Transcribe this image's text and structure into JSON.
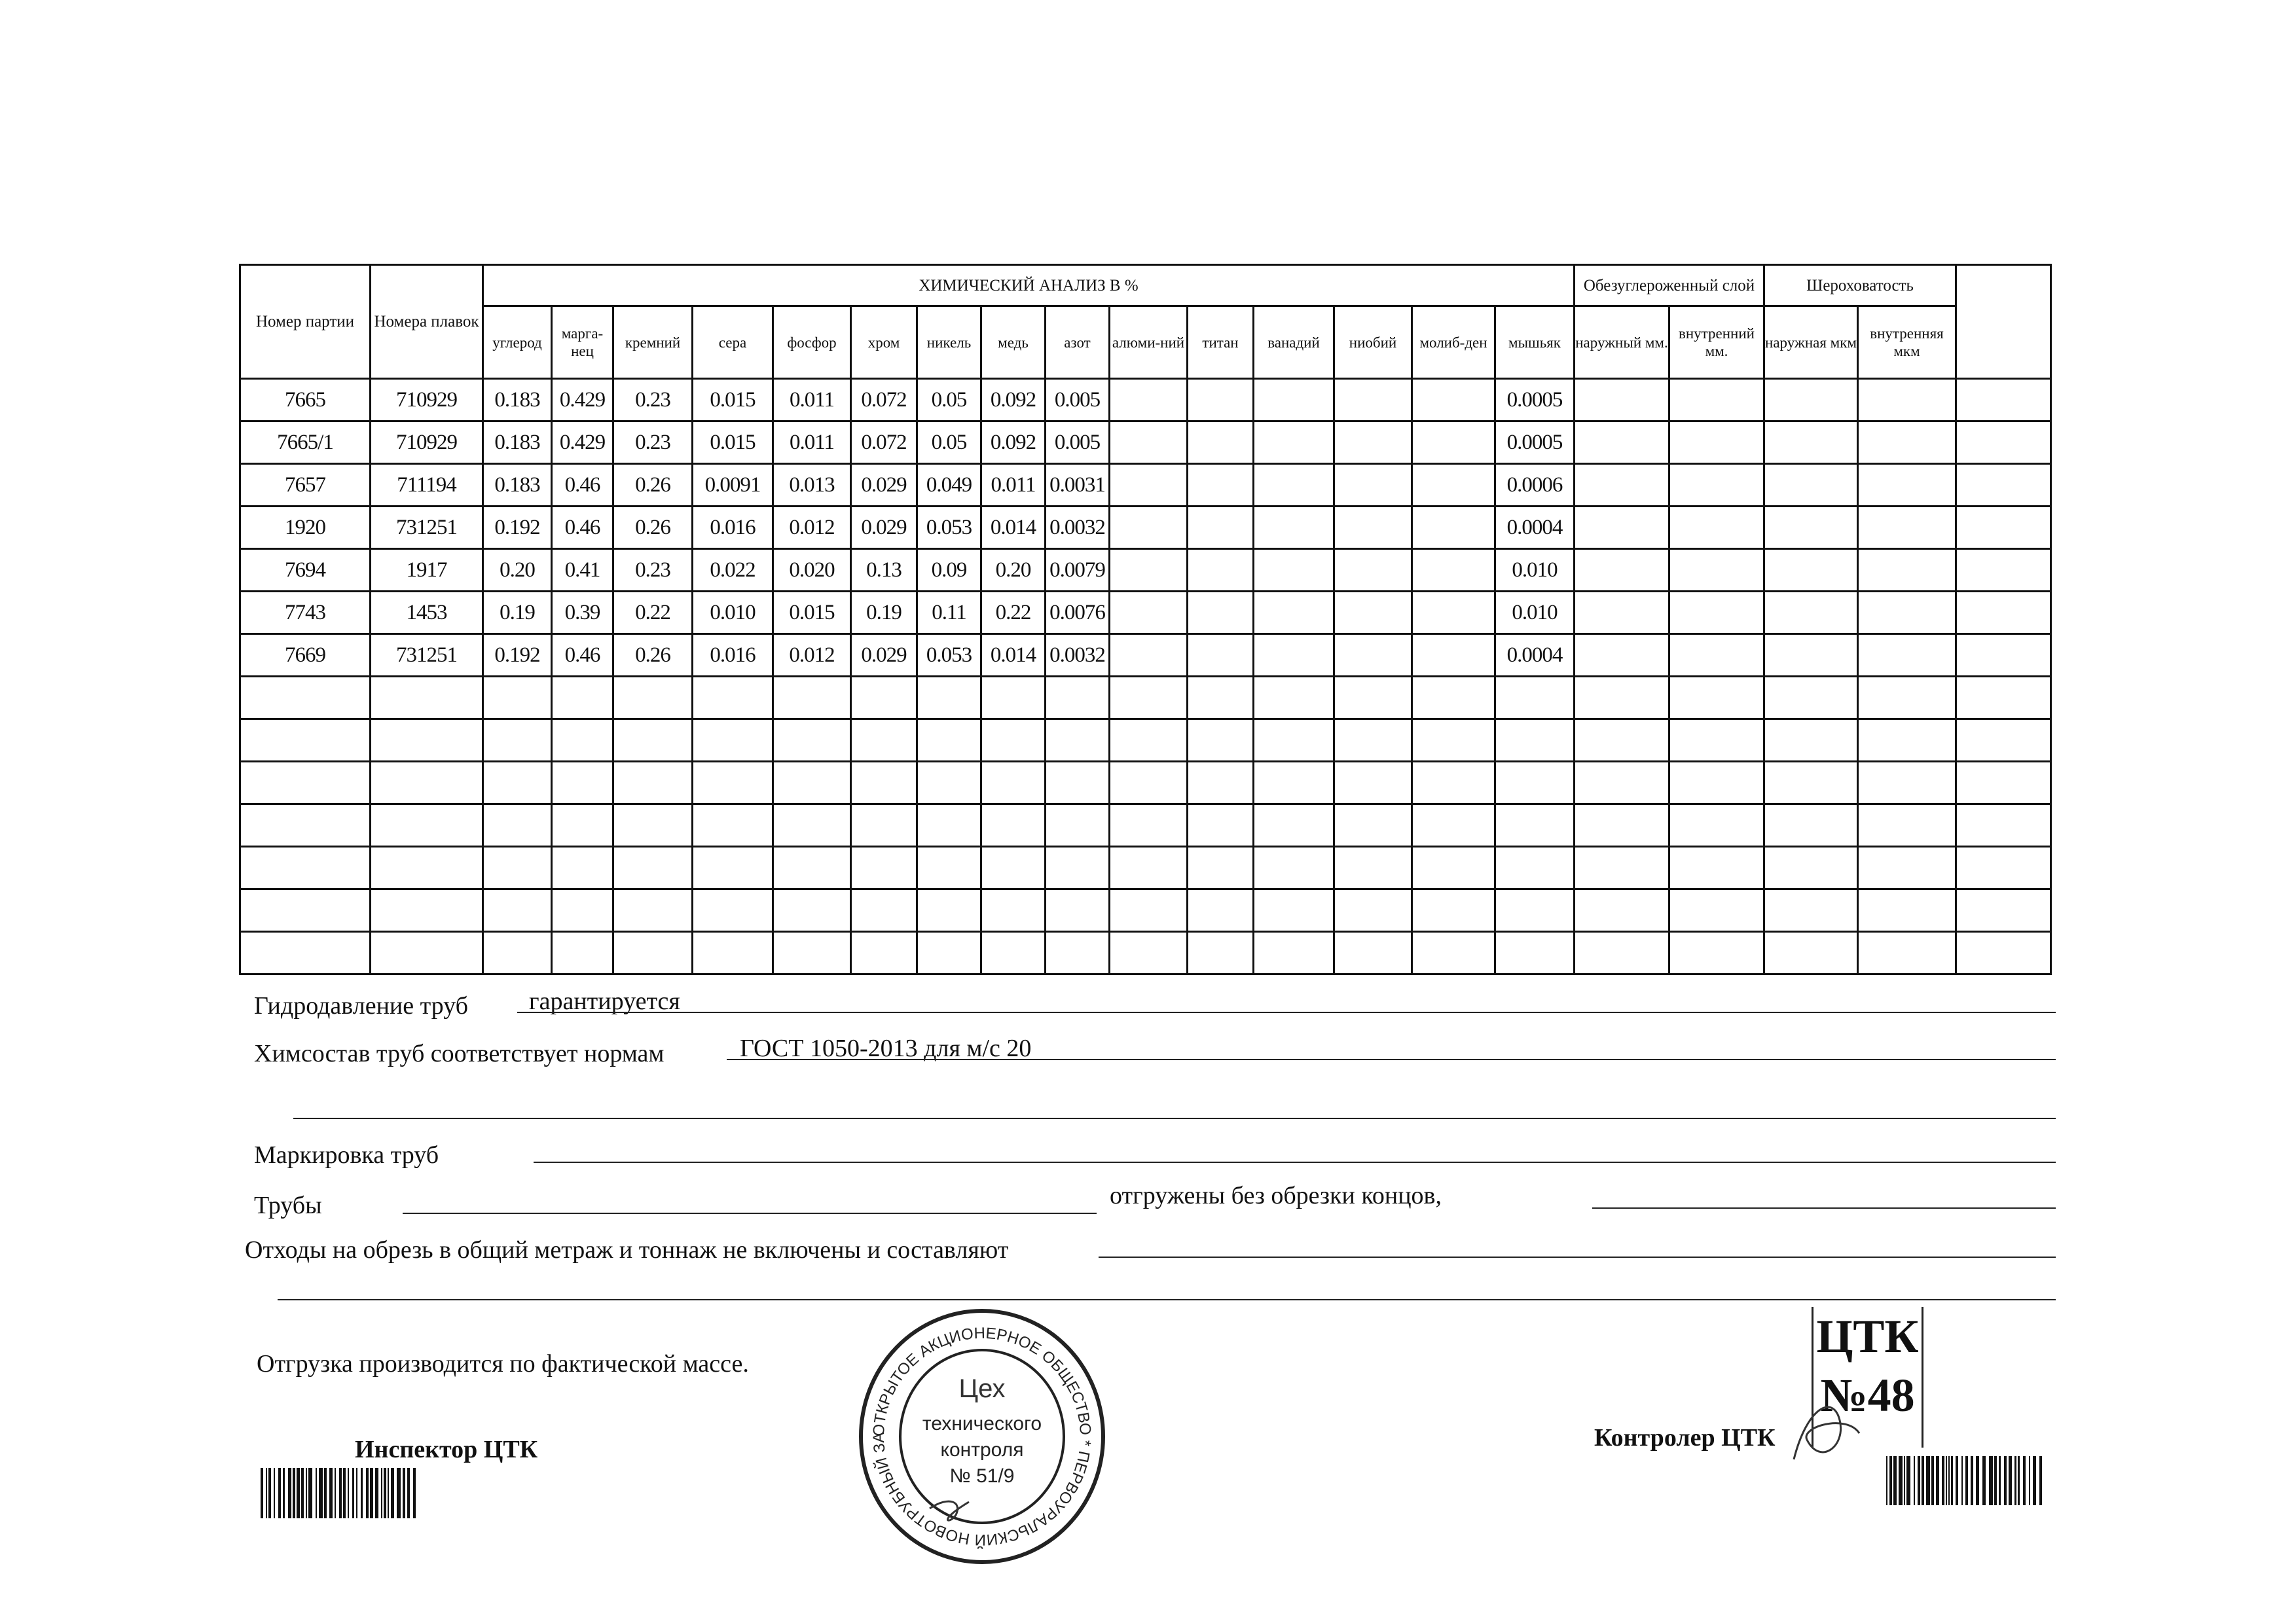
{
  "table": {
    "col_party": "Номер партии",
    "col_heats": "Номера плавок",
    "chem_group": "ХИМИЧЕСКИЙ АНАЛИЗ В %",
    "decarb_group": "Обезуглероженный слой",
    "rough_group": "Шероховатость",
    "chem_cols": [
      "углерод",
      "марга-нец",
      "кремний",
      "сера",
      "фосфор",
      "хром",
      "никель",
      "медь",
      "азот",
      "алюми-ний",
      "титан",
      "ванадий",
      "ниобий",
      "молиб-ден",
      "мышьяк"
    ],
    "decarb_cols": [
      "наружный мм.",
      "внутренний мм."
    ],
    "rough_cols": [
      "наружная мкм",
      "внутренняя мкм"
    ],
    "rows": [
      [
        "7665",
        "710929",
        "0.183",
        "0.429",
        "0.23",
        "0.015",
        "0.011",
        "0.072",
        "0.05",
        "0.092",
        "0.005",
        "",
        "",
        "",
        "",
        "",
        "0.0005",
        "",
        "",
        "",
        "",
        ""
      ],
      [
        "7665/1",
        "710929",
        "0.183",
        "0.429",
        "0.23",
        "0.015",
        "0.011",
        "0.072",
        "0.05",
        "0.092",
        "0.005",
        "",
        "",
        "",
        "",
        "",
        "0.0005",
        "",
        "",
        "",
        "",
        ""
      ],
      [
        "7657",
        "711194",
        "0.183",
        "0.46",
        "0.26",
        "0.0091",
        "0.013",
        "0.029",
        "0.049",
        "0.011",
        "0.0031",
        "",
        "",
        "",
        "",
        "",
        "0.0006",
        "",
        "",
        "",
        "",
        ""
      ],
      [
        "1920",
        "731251",
        "0.192",
        "0.46",
        "0.26",
        "0.016",
        "0.012",
        "0.029",
        "0.053",
        "0.014",
        "0.0032",
        "",
        "",
        "",
        "",
        "",
        "0.0004",
        "",
        "",
        "",
        "",
        ""
      ],
      [
        "7694",
        "1917",
        "0.20",
        "0.41",
        "0.23",
        "0.022",
        "0.020",
        "0.13",
        "0.09",
        "0.20",
        "0.0079",
        "",
        "",
        "",
        "",
        "",
        "0.010",
        "",
        "",
        "",
        "",
        ""
      ],
      [
        "7743",
        "1453",
        "0.19",
        "0.39",
        "0.22",
        "0.010",
        "0.015",
        "0.19",
        "0.11",
        "0.22",
        "0.0076",
        "",
        "",
        "",
        "",
        "",
        "0.010",
        "",
        "",
        "",
        "",
        ""
      ],
      [
        "7669",
        "731251",
        "0.192",
        "0.46",
        "0.26",
        "0.016",
        "0.012",
        "0.029",
        "0.053",
        "0.014",
        "0.0032",
        "",
        "",
        "",
        "",
        "",
        "0.0004",
        "",
        "",
        "",
        "",
        ""
      ]
    ],
    "empty_rows": 7
  },
  "form": {
    "hydro_label": "Гидродавление труб",
    "hydro_value": "гарантируется",
    "chem_label": "Химсостав труб соответствует нормам",
    "chem_value": "ГОСТ 1050-2013 для м/с 20",
    "marking_label": "Маркировка труб",
    "pipes_label": "Трубы",
    "pipes_mid": "отгружены без обрезки концов,",
    "waste_label": "Отходы на обрезь в общий метраж и тоннаж не включены и составляют",
    "shipment": "Отгрузка производится по фактической массе.",
    "inspector": "Инспектор ЦТК",
    "controller": "Контролер ЦТК"
  },
  "stamp": {
    "ring": "ОТКРЫТОЕ АКЦИОНЕРНОЕ ОБЩЕСТВО * ПЕРВОУРАЛЬСКИЙ НОВОТРУБНЫЙ ЗАВОД *",
    "center": [
      "Цех",
      "технического",
      "контроля",
      "№ 51/9"
    ]
  },
  "ctk_stamp": [
    "ЦТК",
    "№48"
  ]
}
